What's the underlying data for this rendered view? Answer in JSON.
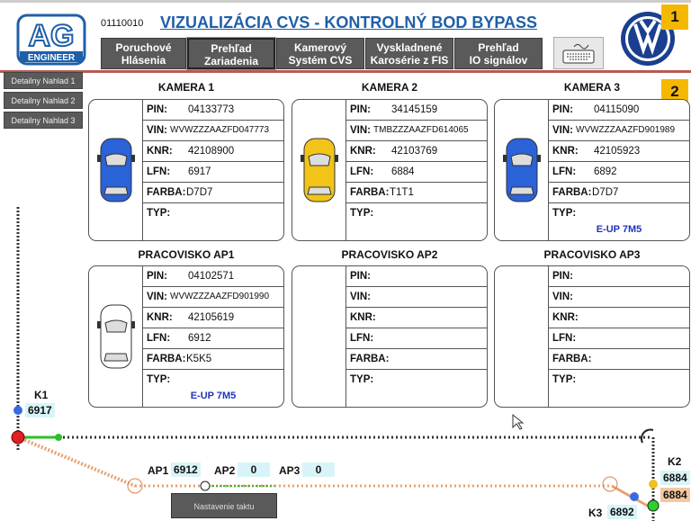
{
  "header": {
    "code": "01110010",
    "title": "VIZUALIZÁCIA CVS - KONTROLNÝ BOD BYPASS",
    "logo_text": "AG ENGINEER",
    "nav": [
      {
        "line1": "Poruchové",
        "line2": "Hlásenia"
      },
      {
        "line1": "Prehľad",
        "line2": "Zariadenia"
      },
      {
        "line1": "Kamerový",
        "line2": "Systém CVS"
      },
      {
        "line1": "Vyskladnené",
        "line2": "Karosérie z FIS"
      },
      {
        "line1": "Prehľad",
        "line2": "IO signálov"
      }
    ],
    "keyboard_icon": "keyboard-icon",
    "brand_logo": "vw-logo"
  },
  "badges": [
    "1",
    "2"
  ],
  "side": [
    "Detailny Nahlad 1",
    "Detailny Nahlad 2",
    "Detailny Nahlad 3"
  ],
  "labels": {
    "pin": "PIN:",
    "vin": "VIN:",
    "knr": "KNR:",
    "lfn": "LFN:",
    "farba": "FARBA:",
    "typ": "TYP:"
  },
  "cards": [
    {
      "title": "KAMERA 1",
      "pin": "04133773",
      "vin": "WVWZZZAAZFD047773",
      "knr": "42108900",
      "lfn": "6917",
      "farba": "D7D7",
      "typ": "",
      "car_color": "#2a62d8"
    },
    {
      "title": "KAMERA 2",
      "pin": "34145159",
      "vin": "TMBZZZAAZFD614065",
      "knr": "42103769",
      "lfn": "6884",
      "farba": "T1T1",
      "typ": "",
      "car_color": "#f2c418"
    },
    {
      "title": "KAMERA 3",
      "pin": "04115090",
      "vin": "WVWZZZAAZFD901989",
      "knr": "42105923",
      "lfn": "6892",
      "farba": "D7D7",
      "typ": "E-UP 7M5",
      "car_color": "#2a62d8"
    },
    {
      "title": "PRACOVISKO AP1",
      "pin": "04102571",
      "vin": "WVWZZZAAZFD901990",
      "knr": "42105619",
      "lfn": "6912",
      "farba": "K5K5",
      "typ": "E-UP 7M5",
      "car_color": "#ffffff"
    },
    {
      "title": "PRACOVISKO AP2",
      "pin": "",
      "vin": "",
      "knr": "",
      "lfn": "",
      "farba": "",
      "typ": "",
      "car_color": ""
    },
    {
      "title": "PRACOVISKO AP3",
      "pin": "",
      "vin": "",
      "knr": "",
      "lfn": "",
      "farba": "",
      "typ": "",
      "car_color": ""
    }
  ],
  "track": {
    "k1": {
      "label": "K1",
      "value": "6917"
    },
    "k2": {
      "label": "K2",
      "value1": "6884",
      "value2": "6884"
    },
    "k3": {
      "label": "K3",
      "value": "6892"
    },
    "ap1": {
      "label": "AP1",
      "value": "6912"
    },
    "ap2": {
      "label": "AP2",
      "value": "0"
    },
    "ap3": {
      "label": "AP3",
      "value": "0"
    }
  },
  "button_takt": "Nastavenie taktu"
}
